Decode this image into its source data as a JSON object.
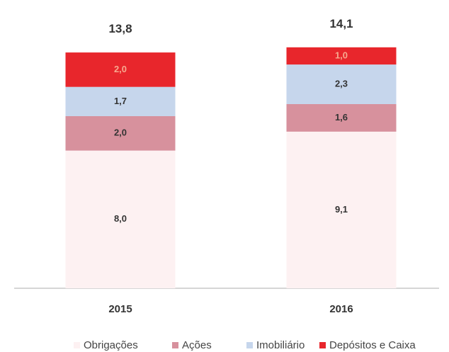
{
  "chart_data": {
    "type": "stacked_bar",
    "categories": [
      "2015",
      "2016"
    ],
    "series": [
      {
        "name": "Obrigações",
        "color": "#fdf1f2",
        "label_color": "#333333",
        "values": [
          8.0,
          9.1
        ],
        "value_labels": [
          "8,0",
          "9,1"
        ]
      },
      {
        "name": "Ações",
        "color": "#d7919d",
        "label_color": "#333333",
        "values": [
          2.0,
          1.6
        ],
        "value_labels": [
          "2,0",
          "1,6"
        ]
      },
      {
        "name": "Imobiliário",
        "color": "#c6d6ec",
        "label_color": "#333333",
        "values": [
          1.7,
          2.3
        ],
        "value_labels": [
          "1,7",
          "2,3"
        ]
      },
      {
        "name": "Depósitos e Caixa",
        "color": "#e8262c",
        "label_color": "#f7a98f",
        "values": [
          2.0,
          1.0
        ],
        "value_labels": [
          "2,0",
          "1,0"
        ]
      }
    ],
    "totals": [
      13.8,
      14.1
    ],
    "total_labels": [
      "13,8",
      "14,1"
    ],
    "ylim": [
      0,
      15
    ]
  }
}
